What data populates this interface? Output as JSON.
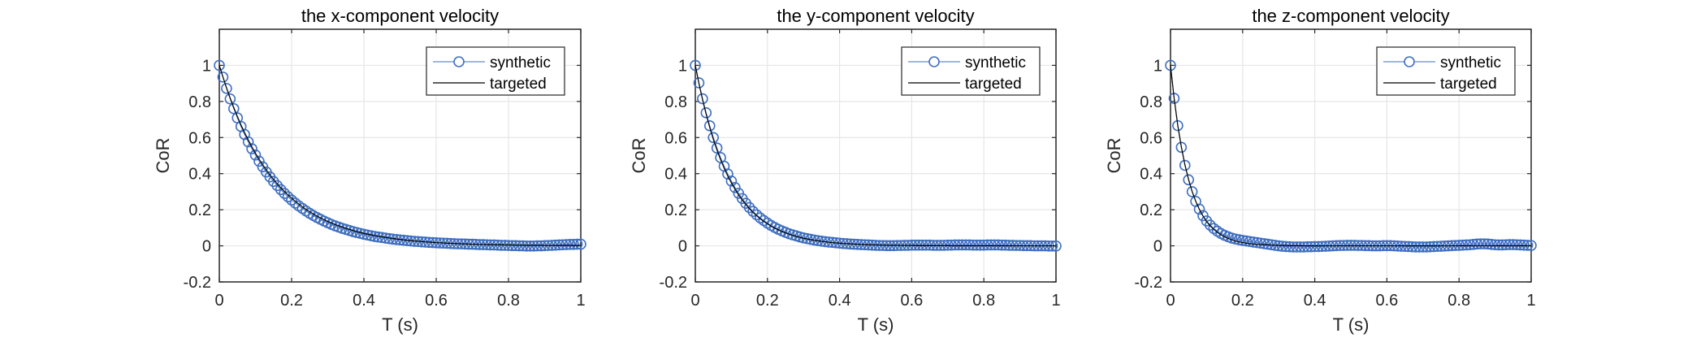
{
  "chart_data": [
    {
      "type": "line",
      "title": "the x-component velocity",
      "xlabel": "T (s)",
      "ylabel": "CoR",
      "xlim": [
        0,
        1
      ],
      "ylim": [
        -0.2,
        1.2
      ],
      "xticks": [
        0,
        0.2,
        0.4,
        0.6,
        0.8,
        1
      ],
      "xtick_labels": [
        "0",
        "0.2",
        "0.4",
        "0.6",
        "0.8",
        "1"
      ],
      "yticks": [
        -0.2,
        0,
        0.2,
        0.4,
        0.6,
        0.8,
        1
      ],
      "ytick_labels": [
        "-0.2",
        "0",
        "0.2",
        "0.4",
        "0.6",
        "0.8",
        "1"
      ],
      "grid": true,
      "legend_position": "top-right",
      "x_start": 0,
      "x_step": 0.01,
      "series": [
        {
          "name": "synthetic",
          "color": "#3F6FBF",
          "marker": "circle",
          "values": [
            1,
            0.935,
            0.872,
            0.814,
            0.76,
            0.709,
            0.661,
            0.617,
            0.576,
            0.538,
            0.503,
            0.469,
            0.438,
            0.409,
            0.382,
            0.357,
            0.334,
            0.312,
            0.291,
            0.272,
            0.254,
            0.237,
            0.221,
            0.207,
            0.193,
            0.18,
            0.168,
            0.157,
            0.147,
            0.137,
            0.128,
            0.119,
            0.111,
            0.104,
            0.097,
            0.091,
            0.085,
            0.079,
            0.074,
            0.069,
            0.064,
            0.06,
            0.056,
            0.052,
            0.049,
            0.046,
            0.043,
            0.04,
            0.037,
            0.035,
            0.033,
            0.031,
            0.029,
            0.027,
            0.025,
            0.024,
            0.022,
            0.021,
            0.019,
            0.018,
            0.017,
            0.016,
            0.015,
            0.014,
            0.013,
            0.012,
            0.011,
            0.011,
            0.01,
            0.009,
            0.009,
            0.008,
            0.007,
            0.007,
            0.006,
            0.005,
            0.005,
            0.004,
            0.003,
            0.003,
            0.002,
            0.001,
            0.001,
            0.0,
            0.0,
            -0.001,
            -0.001,
            -0.001,
            0.0,
            0.0,
            0.001,
            0.002,
            0.003,
            0.004,
            0.005,
            0.006,
            0.007,
            0.008,
            0.008,
            0.009,
            0.009
          ]
        },
        {
          "name": "targeted",
          "color": "#000000",
          "marker": "none",
          "values": [
            1,
            0.936,
            0.875,
            0.819,
            0.766,
            0.717,
            0.67,
            0.627,
            0.587,
            0.549,
            0.513,
            0.48,
            0.449,
            0.42,
            0.393,
            0.368,
            0.344,
            0.322,
            0.301,
            0.282,
            0.264,
            0.247,
            0.231,
            0.216,
            0.202,
            0.189,
            0.177,
            0.165,
            0.155,
            0.145,
            0.135,
            0.127,
            0.118,
            0.111,
            0.104,
            0.097,
            0.091,
            0.085,
            0.079,
            0.074,
            0.069,
            0.065,
            0.061,
            0.057,
            0.053,
            0.05,
            0.047,
            0.044,
            0.041,
            0.038,
            0.036,
            0.033,
            0.031,
            0.029,
            0.027,
            0.026,
            0.024,
            0.022,
            0.021,
            0.02,
            0.018,
            0.017,
            0.016,
            0.015,
            0.014,
            0.013,
            0.012,
            0.011,
            0.011,
            0.01,
            0.009,
            0.009,
            0.008,
            0.008,
            0.007,
            0.007,
            0.006,
            0.006,
            0.006,
            0.005,
            0.005,
            0.005,
            0.004,
            0.004,
            0.004,
            0.003,
            0.003,
            0.003,
            0.003,
            0.003,
            0.002,
            0.002,
            0.002,
            0.002,
            0.002,
            0.002,
            0.002,
            0.002,
            0.001,
            0.001,
            0.001
          ]
        }
      ]
    },
    {
      "type": "line",
      "title": "the y-component velocity",
      "xlabel": "T (s)",
      "ylabel": "CoR",
      "xlim": [
        0,
        1
      ],
      "ylim": [
        -0.2,
        1.2
      ],
      "xticks": [
        0,
        0.2,
        0.4,
        0.6,
        0.8,
        1
      ],
      "xtick_labels": [
        "0",
        "0.2",
        "0.4",
        "0.6",
        "0.8",
        "1"
      ],
      "yticks": [
        -0.2,
        0,
        0.2,
        0.4,
        0.6,
        0.8,
        1
      ],
      "ytick_labels": [
        "-0.2",
        "0",
        "0.2",
        "0.4",
        "0.6",
        "0.8",
        "1"
      ],
      "grid": true,
      "legend_position": "top-right",
      "x_start": 0,
      "x_step": 0.01,
      "series": [
        {
          "name": "synthetic",
          "color": "#3F6FBF",
          "marker": "circle",
          "values": [
            1,
            0.903,
            0.815,
            0.737,
            0.665,
            0.6,
            0.542,
            0.489,
            0.441,
            0.398,
            0.359,
            0.323,
            0.291,
            0.262,
            0.236,
            0.212,
            0.191,
            0.172,
            0.155,
            0.14,
            0.126,
            0.113,
            0.102,
            0.092,
            0.083,
            0.075,
            0.067,
            0.061,
            0.055,
            0.049,
            0.044,
            0.04,
            0.036,
            0.032,
            0.029,
            0.026,
            0.023,
            0.021,
            0.019,
            0.017,
            0.015,
            0.013,
            0.012,
            0.01,
            0.009,
            0.008,
            0.007,
            0.006,
            0.005,
            0.004,
            0.003,
            0.002,
            0.002,
            0.001,
            0.001,
            0.001,
            0.002,
            0.002,
            0.003,
            0.003,
            0.004,
            0.004,
            0.004,
            0.004,
            0.004,
            0.004,
            0.003,
            0.003,
            0.003,
            0.003,
            0.004,
            0.004,
            0.005,
            0.005,
            0.005,
            0.005,
            0.005,
            0.004,
            0.004,
            0.004,
            0.004,
            0.005,
            0.005,
            0.005,
            0.005,
            0.004,
            0.004,
            0.003,
            0.003,
            0.002,
            0.002,
            0.001,
            0.001,
            0.001,
            0.0,
            0.0,
            0.0,
            0.0,
            -0.001,
            -0.001,
            -0.001
          ]
        },
        {
          "name": "targeted",
          "color": "#000000",
          "marker": "none",
          "values": [
            1,
            0.9,
            0.81,
            0.729,
            0.656,
            0.59,
            0.531,
            0.478,
            0.43,
            0.387,
            0.349,
            0.314,
            0.282,
            0.254,
            0.229,
            0.206,
            0.185,
            0.167,
            0.15,
            0.135,
            0.122,
            0.109,
            0.098,
            0.089,
            0.08,
            0.072,
            0.065,
            0.058,
            0.052,
            0.047,
            0.042,
            0.038,
            0.034,
            0.031,
            0.028,
            0.025,
            0.023,
            0.02,
            0.018,
            0.016,
            0.015,
            0.013,
            0.012,
            0.011,
            0.01,
            0.009,
            0.008,
            0.007,
            0.006,
            0.006,
            0.005,
            0.005,
            0.004,
            0.004,
            0.003,
            0.003,
            0.003,
            0.002,
            0.002,
            0.002,
            0.002,
            0.002,
            0.001,
            0.001,
            0.001,
            0.001,
            0.001,
            0.001,
            0.001,
            0.001,
            0.001,
            0.0,
            0.0,
            0.0,
            0.0,
            0.0,
            0.0,
            0.0,
            0.0,
            0.0,
            0.0,
            0.0,
            0.0,
            0.0,
            0.0,
            0.0,
            0.0,
            0.0,
            0.0,
            0.0,
            0.0,
            0.0,
            0.0,
            0.0,
            0.0,
            0.0,
            0.0,
            0.0,
            0.0,
            0.0,
            0.0
          ]
        }
      ]
    },
    {
      "type": "line",
      "title": "the z-component velocity",
      "xlabel": "T (s)",
      "ylabel": "CoR",
      "xlim": [
        0,
        1
      ],
      "ylim": [
        -0.2,
        1.2
      ],
      "xticks": [
        0,
        0.2,
        0.4,
        0.6,
        0.8,
        1
      ],
      "xtick_labels": [
        "0",
        "0.2",
        "0.4",
        "0.6",
        "0.8",
        "1"
      ],
      "yticks": [
        -0.2,
        0,
        0.2,
        0.4,
        0.6,
        0.8,
        1
      ],
      "ytick_labels": [
        "-0.2",
        "0",
        "0.2",
        "0.4",
        "0.6",
        "0.8",
        "1"
      ],
      "grid": true,
      "legend_position": "top-right",
      "x_start": 0,
      "x_step": 0.01,
      "series": [
        {
          "name": "synthetic",
          "color": "#3F6FBF",
          "marker": "circle",
          "values": [
            1,
            0.817,
            0.666,
            0.546,
            0.446,
            0.366,
            0.3,
            0.246,
            0.203,
            0.167,
            0.138,
            0.115,
            0.096,
            0.081,
            0.068,
            0.058,
            0.05,
            0.043,
            0.038,
            0.034,
            0.03,
            0.027,
            0.024,
            0.021,
            0.018,
            0.015,
            0.012,
            0.009,
            0.006,
            0.003,
            0.0,
            -0.002,
            -0.004,
            -0.005,
            -0.006,
            -0.006,
            -0.006,
            -0.006,
            -0.005,
            -0.005,
            -0.004,
            -0.004,
            -0.003,
            -0.002,
            -0.001,
            0.0,
            0.001,
            0.002,
            0.002,
            0.003,
            0.003,
            0.003,
            0.002,
            0.002,
            0.001,
            0.001,
            0.0,
            0.0,
            0.0,
            0.001,
            0.001,
            0.001,
            0.0,
            -0.001,
            -0.002,
            -0.003,
            -0.004,
            -0.005,
            -0.006,
            -0.006,
            -0.006,
            -0.006,
            -0.005,
            -0.004,
            -0.003,
            -0.002,
            -0.001,
            0.0,
            0.001,
            0.002,
            0.003,
            0.004,
            0.005,
            0.006,
            0.008,
            0.01,
            0.011,
            0.011,
            0.01,
            0.008,
            0.006,
            0.005,
            0.005,
            0.006,
            0.007,
            0.007,
            0.006,
            0.005,
            0.004,
            0.003,
            0.002
          ]
        },
        {
          "name": "targeted",
          "color": "#000000",
          "marker": "none",
          "values": [
            1,
            0.819,
            0.67,
            0.549,
            0.449,
            0.368,
            0.301,
            0.247,
            0.202,
            0.165,
            0.135,
            0.111,
            0.091,
            0.074,
            0.061,
            0.05,
            0.041,
            0.033,
            0.027,
            0.022,
            0.018,
            0.015,
            0.012,
            0.01,
            0.008,
            0.007,
            0.006,
            0.005,
            0.004,
            0.003,
            0.002,
            0.002,
            0.002,
            0.001,
            0.001,
            0.001,
            0.001,
            0.0,
            0.0,
            0.0,
            0.0,
            0.0,
            0.0,
            0.0,
            0.0,
            0.0,
            0.0,
            0.0,
            0.0,
            0.0,
            0.0,
            0.0,
            0.0,
            0.0,
            0.0,
            0.0,
            0.0,
            0.0,
            0.0,
            0.0,
            0.0,
            0.0,
            0.0,
            0.0,
            0.0,
            0.0,
            0.0,
            0.0,
            0.0,
            0.0,
            0.0,
            0.0,
            0.0,
            0.0,
            0.0,
            0.0,
            0.0,
            0.0,
            0.0,
            0.0,
            0.0,
            0.0,
            0.0,
            0.0,
            0.0,
            0.0,
            0.0,
            0.0,
            0.0,
            0.0,
            0.0,
            0.0,
            0.0,
            0.0,
            0.0,
            0.0,
            0.0,
            0.0,
            0.0,
            0.0,
            0.0
          ]
        }
      ]
    }
  ]
}
